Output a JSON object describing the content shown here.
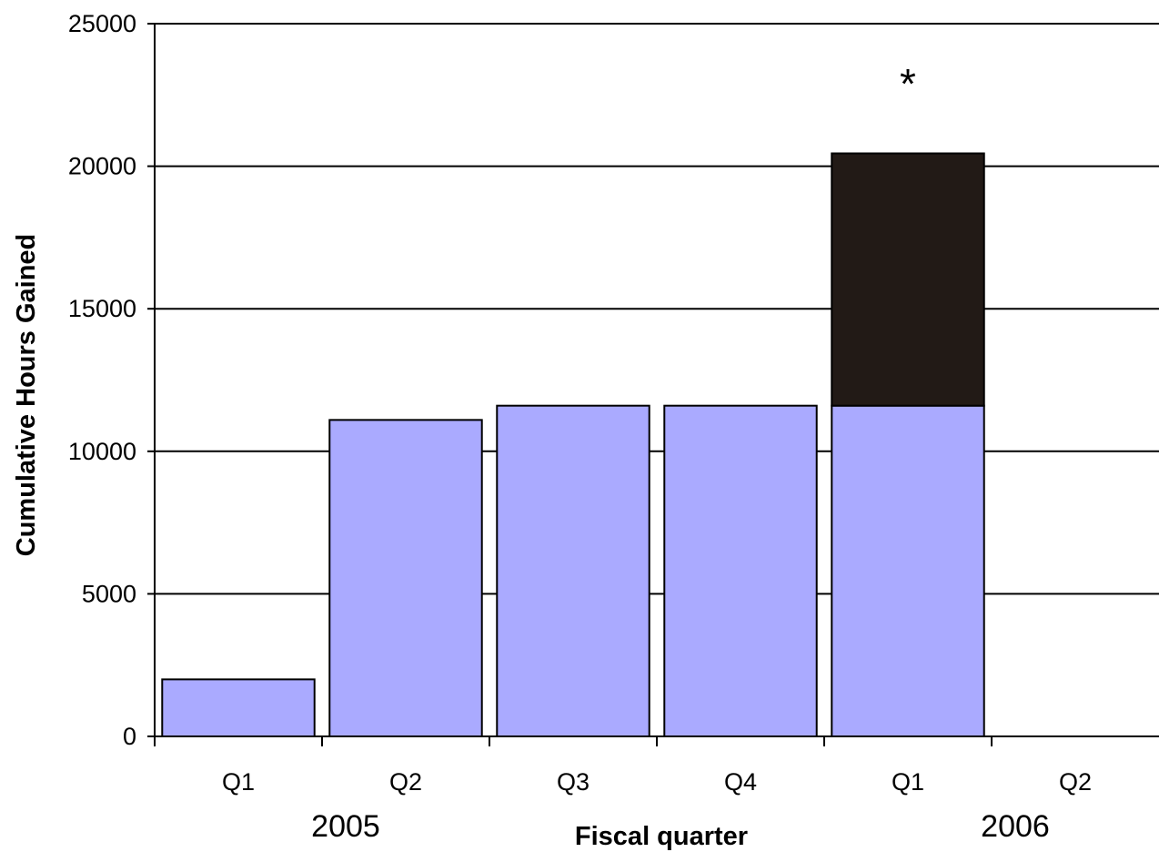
{
  "chart_data": {
    "type": "bar",
    "stacked": true,
    "categories": [
      "Q1",
      "Q2",
      "Q3",
      "Q4",
      "Q1",
      "Q2"
    ],
    "groups": [
      {
        "label": "2005",
        "categories": [
          0,
          1,
          2,
          3
        ]
      },
      {
        "label": "2006",
        "categories": [
          4,
          5
        ]
      }
    ],
    "series": [
      {
        "color": "#aaaaff",
        "values": [
          2000,
          11100,
          11600,
          11600,
          11600,
          null
        ]
      },
      {
        "color": "#221a16",
        "values": [
          null,
          null,
          null,
          null,
          8850,
          null
        ]
      }
    ],
    "xlabel": "Fiscal quarter",
    "ylabel": "Cumulative Hours Gained",
    "ylim": [
      0,
      25000
    ],
    "yticks": [
      0,
      5000,
      10000,
      15000,
      20000,
      25000
    ],
    "grid": true,
    "annotations": [
      {
        "category": 4,
        "text": "*"
      }
    ]
  }
}
